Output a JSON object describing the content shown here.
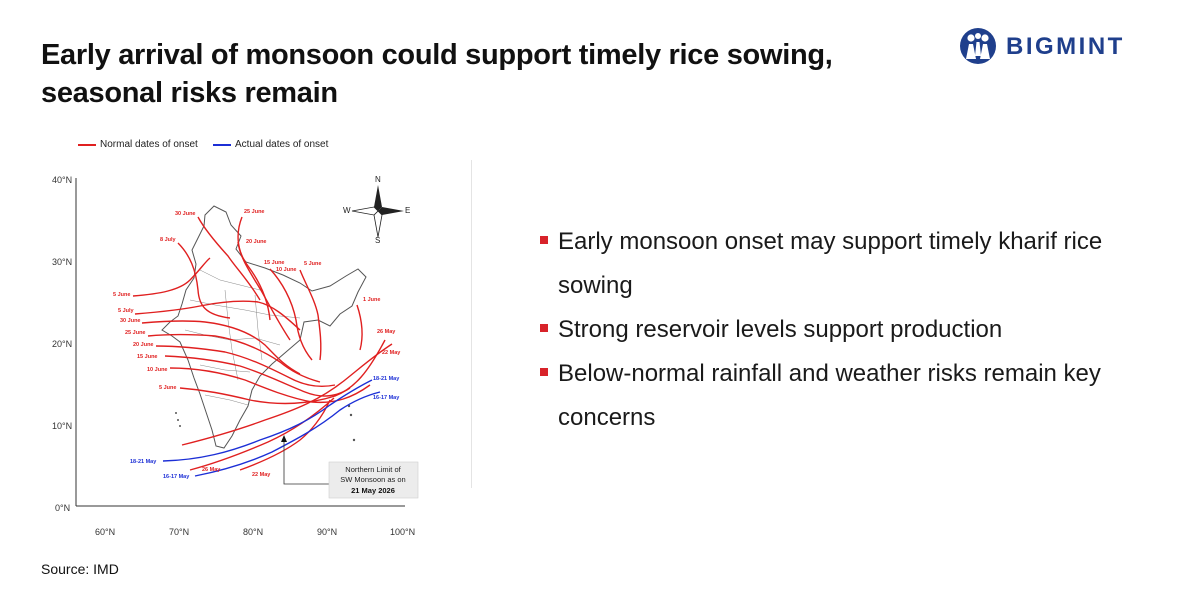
{
  "title": "Early arrival of monsoon could support timely rice sowing, seasonal risks remain",
  "brand": {
    "name": "BIGMINT",
    "color": "#1f3f8c"
  },
  "legend": [
    {
      "label": "Normal dates of onset",
      "color": "#e02020"
    },
    {
      "label": "Actual dates of onset",
      "color": "#1c2fd6"
    }
  ],
  "map": {
    "y_axis": [
      "40°N",
      "30°N",
      "20°N",
      "10°N",
      "0°N"
    ],
    "x_axis": [
      "60°N",
      "70°N",
      "80°N",
      "90°N",
      "100°N"
    ],
    "compass": {
      "n": "N",
      "s": "S",
      "e": "E",
      "w": "W"
    },
    "normal_labels": [
      "30 June",
      "25 June",
      "8 July",
      "20 June",
      "15 June",
      "10 June",
      "5 June",
      "5 June",
      "1 June",
      "5 July",
      "30 June",
      "25 June",
      "20 June",
      "15 June",
      "10 June",
      "5 June",
      "26 May",
      "22 May",
      "26 May",
      "22 May"
    ],
    "actual_labels": [
      "18-21 May",
      "16-17 May",
      "18-21 May",
      "16-17 May"
    ],
    "callout": {
      "line1": "Northern Limit of",
      "line2": "SW Monsoon as on",
      "line3": "21 May 2026"
    }
  },
  "bullets": [
    "Early monsoon onset may support timely kharif rice sowing",
    "Strong reservoir levels support production",
    "Below-normal rainfall and weather risks remain key concerns"
  ],
  "colors": {
    "accent": "#d8232a",
    "normal": "#e02020",
    "actual": "#1c2fd6"
  },
  "source": "Source: IMD"
}
